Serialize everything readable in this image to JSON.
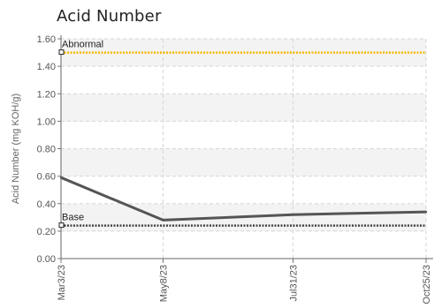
{
  "chart_data": {
    "type": "line",
    "title": "Acid Number",
    "ylabel": "Acid Number (mg KOH/g)",
    "xlabel": "",
    "ylim": [
      0,
      1.6
    ],
    "y_ticks": [
      "0.00",
      "0.20",
      "0.40",
      "0.60",
      "0.80",
      "1.00",
      "1.20",
      "1.40",
      "1.60"
    ],
    "x_ticks": [
      "Mar3/23",
      "May8/23",
      "Jul31/23",
      "Oct25/23"
    ],
    "x": [
      "2023-03-03",
      "2023-05-08",
      "2023-07-31",
      "2023-10-25"
    ],
    "series": [
      {
        "values": [
          0.59,
          0.28,
          0.32,
          0.34
        ],
        "color": "#555555"
      }
    ],
    "reference_lines": [
      {
        "label": "Abnormal",
        "value": 1.5,
        "color": "#f5b800"
      },
      {
        "label": "Base",
        "value": 0.24,
        "color": "#444444"
      }
    ],
    "grid": true,
    "band_colors": [
      "#f3f3f3",
      "#ffffff"
    ]
  }
}
